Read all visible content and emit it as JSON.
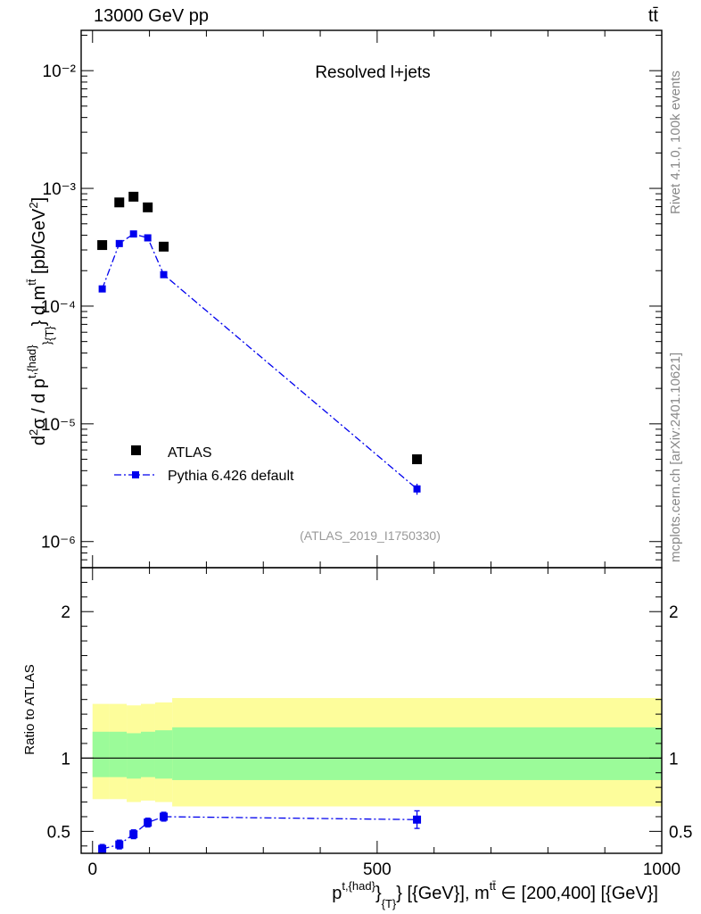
{
  "header": {
    "energy_label": "13000 GeV pp",
    "process_label": "tt̄"
  },
  "side": {
    "rivet_label": "Rivet 4.1.0,  100k events",
    "site_label": "mcplots.cern.ch [arXiv:2401.10621]"
  },
  "chart_data": [
    {
      "type": "scatter",
      "panel": "main",
      "title": "Resolved l+jets",
      "watermark": "(ATLAS_2019_I1750330)",
      "ylabel": "d²σ / d p^{t,{had}}_{T} d m^{tt̄} [pb/GeV²]",
      "yscale": "log",
      "xlim": [
        -20,
        1000
      ],
      "ylim": [
        6e-07,
        0.022
      ],
      "y_tick_labels": [
        "10⁻²",
        "10⁻³",
        "10⁻⁴",
        "10⁻⁵",
        "10⁻⁶"
      ],
      "y_tick_values": [
        0.01,
        0.001,
        0.0001,
        1e-05,
        1e-06
      ],
      "legend_position": "lower-left",
      "series": [
        {
          "name": "ATLAS",
          "color": "#000000",
          "marker": "square",
          "x": [
            17,
            47,
            72,
            97,
            125,
            570
          ],
          "y": [
            0.00033,
            0.00076,
            0.00085,
            0.00069,
            0.00032,
            5e-06
          ]
        },
        {
          "name": "Pythia 6.426 default",
          "color": "#0000ee",
          "marker": "square-line",
          "x": [
            17,
            47,
            72,
            97,
            125,
            570
          ],
          "y": [
            0.00014,
            0.00034,
            0.00041,
            0.00038,
            0.000185,
            2.8e-06
          ],
          "yerr": [
            0,
            0,
            0,
            0,
            0,
            3e-07
          ]
        }
      ]
    },
    {
      "type": "scatter",
      "panel": "ratio",
      "ylabel": "Ratio to ATLAS",
      "xlabel": "p^{t,{had}}_{T} [{GeV}], m^{tt̄} ∈ [200,400] [{GeV}]",
      "xlim": [
        -20,
        1000
      ],
      "ylim": [
        0.35,
        2.3
      ],
      "x_tick_labels": [
        "0",
        "500",
        "1000"
      ],
      "x_tick_values": [
        0,
        500,
        1000
      ],
      "y_tick_labels": [
        "0.5",
        "1",
        "2"
      ],
      "y_tick_values": [
        0.5,
        1,
        2
      ],
      "bands": {
        "edges": [
          0,
          30,
          60,
          85,
          110,
          140,
          1000
        ],
        "inner_lo": [
          0.87,
          0.87,
          0.86,
          0.87,
          0.86,
          0.85
        ],
        "inner_hi": [
          1.18,
          1.18,
          1.17,
          1.18,
          1.19,
          1.21
        ],
        "outer_lo": [
          0.72,
          0.72,
          0.7,
          0.71,
          0.7,
          0.67
        ],
        "outer_hi": [
          1.37,
          1.37,
          1.36,
          1.37,
          1.38,
          1.41
        ],
        "inner_color": "#9bfb99",
        "outer_color": "#fdfd9b"
      },
      "series": [
        {
          "name": "Pythia 6.426 default / ATLAS",
          "color": "#0000ee",
          "x": [
            17,
            47,
            72,
            97,
            125,
            570
          ],
          "y": [
            0.38,
            0.41,
            0.48,
            0.56,
            0.6,
            0.58
          ],
          "yerr": [
            0.03,
            0.03,
            0.03,
            0.03,
            0.03,
            0.06
          ]
        }
      ]
    }
  ]
}
